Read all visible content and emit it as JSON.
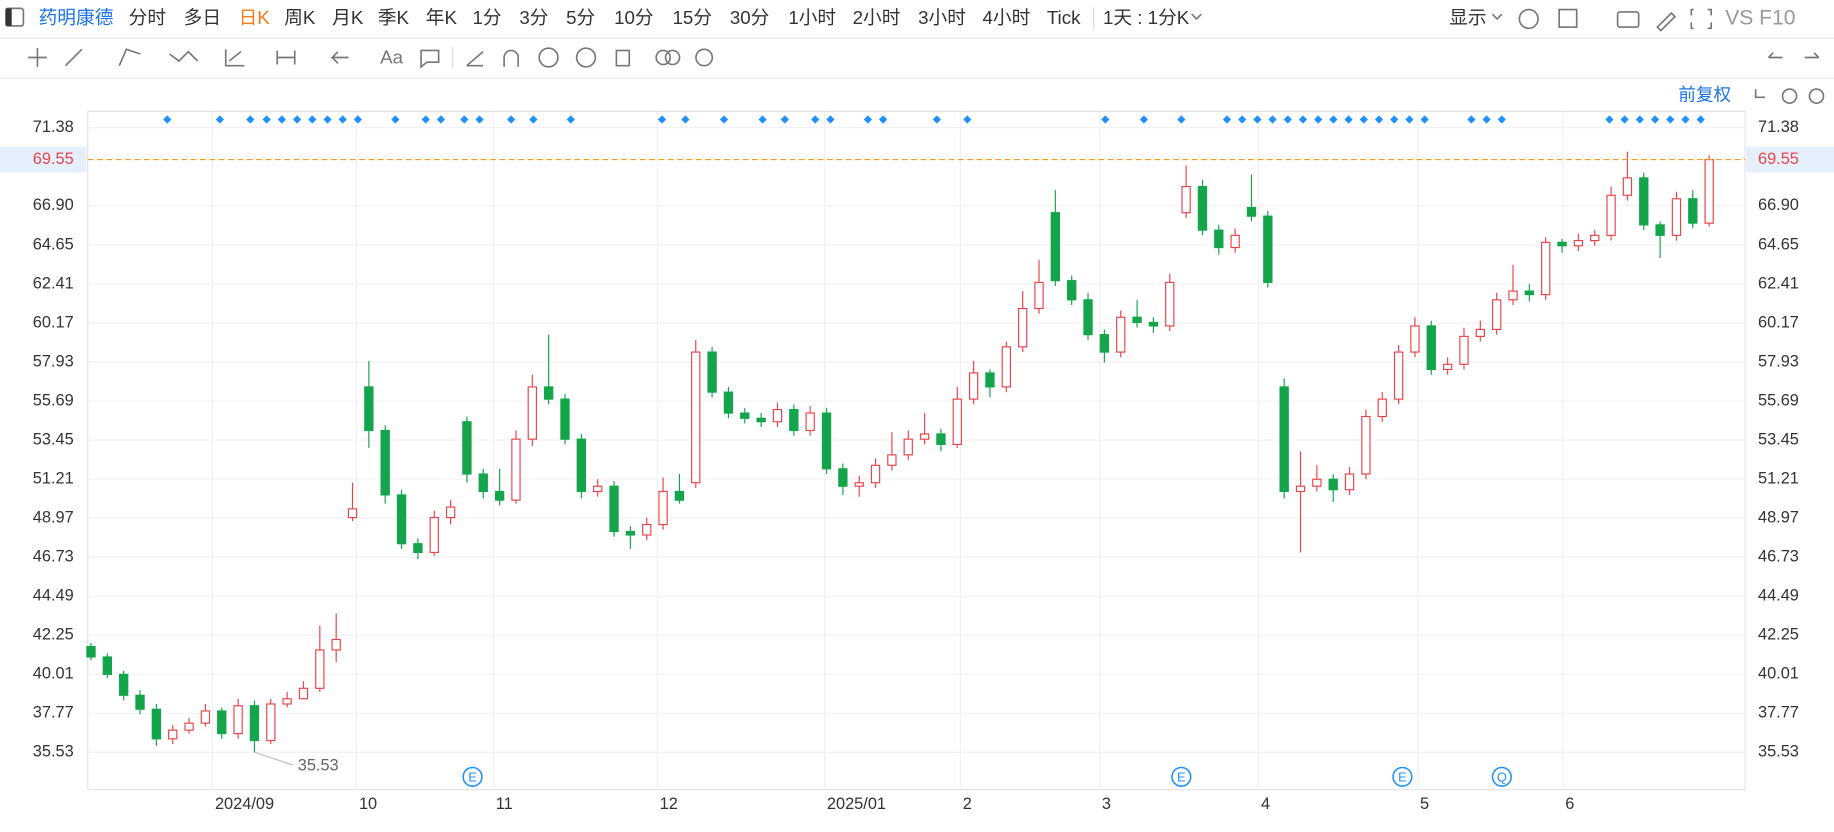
{
  "header": {
    "stock": "药明康德",
    "periods": [
      "分时",
      "多日",
      "日K",
      "周K",
      "月K",
      "季K",
      "年K",
      "1分",
      "3分",
      "5分",
      "10分",
      "15分",
      "30分",
      "1小时",
      "2小时",
      "3小时",
      "4小时",
      "Tick"
    ],
    "interval": "1天 : 1分K",
    "display": "显示",
    "vs": "VS",
    "f10": "F10"
  },
  "toolbar2": {
    "text_tool": "Aa"
  },
  "adjust": "前复权",
  "event_icons": [
    "E",
    "E",
    "E",
    "Q"
  ],
  "chart_data": {
    "type": "candlestick",
    "series": {
      "open": [
        41.6,
        41.0,
        40.0,
        38.8,
        38.0,
        36.3,
        36.8,
        37.2,
        37.9,
        36.6,
        38.2,
        36.2,
        38.3,
        38.6,
        39.2,
        41.4,
        49.0,
        56.5,
        54.0,
        50.3,
        47.5,
        47.0,
        49.0,
        54.5,
        51.5,
        50.5,
        50.0,
        53.5,
        56.5,
        55.8,
        53.5,
        50.5,
        50.8,
        48.2,
        48.0,
        48.6,
        50.5,
        51.0,
        58.5,
        56.2,
        55.0,
        54.7,
        54.5,
        55.2,
        54.0,
        55.0,
        51.8,
        50.8,
        51.0,
        52.0,
        52.6,
        53.5,
        53.8,
        53.2,
        55.8,
        57.3,
        56.5,
        58.8,
        61.0,
        66.5,
        62.6,
        61.5,
        59.5,
        58.5,
        60.5,
        60.2,
        60.0,
        66.5,
        68.0,
        65.5,
        64.5,
        66.8,
        66.3,
        56.5,
        50.5,
        50.8,
        51.2,
        50.6,
        51.5,
        54.8,
        55.8,
        58.5,
        60.0,
        57.5,
        57.8,
        59.4,
        59.8,
        61.5,
        62.0,
        61.8,
        64.8,
        64.6,
        64.9,
        65.2,
        67.5,
        68.5,
        65.8,
        65.2,
        67.3,
        65.9
      ],
      "high": [
        41.8,
        41.2,
        40.2,
        39.1,
        38.3,
        37.1,
        37.5,
        38.3,
        38.1,
        38.6,
        38.5,
        38.6,
        39.0,
        39.6,
        42.8,
        43.5,
        51.0,
        58.0,
        54.3,
        50.6,
        47.8,
        49.4,
        50.0,
        54.8,
        51.8,
        51.8,
        54.0,
        57.2,
        59.5,
        56.1,
        53.8,
        51.2,
        51.1,
        48.5,
        49.0,
        51.3,
        51.5,
        59.2,
        58.8,
        56.5,
        55.3,
        55.0,
        55.6,
        55.5,
        55.4,
        55.3,
        52.1,
        51.4,
        52.4,
        53.9,
        54.0,
        55.0,
        54.1,
        56.5,
        58.0,
        57.5,
        59.1,
        62.0,
        63.8,
        67.8,
        62.9,
        61.9,
        59.8,
        60.9,
        61.5,
        60.5,
        63.0,
        69.2,
        68.4,
        65.8,
        65.6,
        68.7,
        66.6,
        57.0,
        52.8,
        52.0,
        51.5,
        51.9,
        55.2,
        56.2,
        58.9,
        60.5,
        60.3,
        58.2,
        59.9,
        60.3,
        61.9,
        63.5,
        62.4,
        65.1,
        65.0,
        65.3,
        65.5,
        68.0,
        70.0,
        68.8,
        66.0,
        67.7,
        67.8,
        69.8
      ],
      "low": [
        40.8,
        39.8,
        38.5,
        37.7,
        35.9,
        36.0,
        36.6,
        37.0,
        36.3,
        36.3,
        35.53,
        36.0,
        38.1,
        38.7,
        39.0,
        40.7,
        48.8,
        53.0,
        49.8,
        47.2,
        46.6,
        46.8,
        48.6,
        51.0,
        50.1,
        49.7,
        49.8,
        53.1,
        55.5,
        53.2,
        50.1,
        50.2,
        47.9,
        47.2,
        47.7,
        48.3,
        49.8,
        50.7,
        55.9,
        54.7,
        54.4,
        54.2,
        54.2,
        53.7,
        53.7,
        51.5,
        50.3,
        50.2,
        50.7,
        51.7,
        52.3,
        53.2,
        52.8,
        53.0,
        55.5,
        55.9,
        56.2,
        58.5,
        60.7,
        62.3,
        61.2,
        59.2,
        57.9,
        58.2,
        59.9,
        59.6,
        59.7,
        66.2,
        65.2,
        64.1,
        64.2,
        66.0,
        62.2,
        50.1,
        47.0,
        50.5,
        49.9,
        50.3,
        51.2,
        54.5,
        55.5,
        58.2,
        57.2,
        57.2,
        57.5,
        59.1,
        59.5,
        61.2,
        61.4,
        61.5,
        64.2,
        64.3,
        64.6,
        64.9,
        67.2,
        65.5,
        63.9,
        64.9,
        65.6,
        65.7
      ],
      "close": [
        41.0,
        40.0,
        38.8,
        38.0,
        36.3,
        36.8,
        37.2,
        37.9,
        36.6,
        38.2,
        36.2,
        38.3,
        38.6,
        39.2,
        41.4,
        42.0,
        49.5,
        54.0,
        50.3,
        47.5,
        47.0,
        49.0,
        49.6,
        51.5,
        50.5,
        50.0,
        53.5,
        56.5,
        55.8,
        53.5,
        50.5,
        50.8,
        48.2,
        48.0,
        48.6,
        50.5,
        50.0,
        58.5,
        56.2,
        55.0,
        54.7,
        54.5,
        55.2,
        54.0,
        55.0,
        51.8,
        50.8,
        51.0,
        52.0,
        52.6,
        53.5,
        53.8,
        53.2,
        55.8,
        57.3,
        56.5,
        58.8,
        61.0,
        62.5,
        62.6,
        61.5,
        59.5,
        58.5,
        60.5,
        60.2,
        60.0,
        62.5,
        68.0,
        65.5,
        64.5,
        65.2,
        66.3,
        62.5,
        50.5,
        50.8,
        51.2,
        50.6,
        51.5,
        54.8,
        55.8,
        58.5,
        60.0,
        57.5,
        57.8,
        59.4,
        59.8,
        61.5,
        62.0,
        61.8,
        64.8,
        64.6,
        64.9,
        65.2,
        67.5,
        68.5,
        65.8,
        65.2,
        67.3,
        65.9,
        69.55
      ]
    },
    "colors": {
      "up": "#e8454a",
      "down": "#14a44b"
    },
    "last_price_color": "#f59a23",
    "xlim": [
      -0.2,
      101.2
    ],
    "xticks": [
      {
        "value": 7.44,
        "label": "2024/09"
      },
      {
        "value": 16.25,
        "label": "10"
      },
      {
        "value": 24.62,
        "label": "11"
      },
      {
        "value": 34.65,
        "label": "12"
      },
      {
        "value": 44.88,
        "label": "2025/01"
      },
      {
        "value": 53.19,
        "label": "2"
      },
      {
        "value": 61.7,
        "label": "3"
      },
      {
        "value": 71.44,
        "label": "4"
      },
      {
        "value": 81.17,
        "label": "5"
      },
      {
        "value": 90.05,
        "label": "6"
      }
    ],
    "ylim": [
      33.38,
      72.32
    ],
    "yticks": [
      71.38,
      {
        "value": 66.9,
        "label": "66.90"
      },
      64.65,
      62.41,
      60.17,
      57.93,
      55.69,
      53.45,
      51.21,
      48.97,
      46.73,
      44.49,
      42.25,
      40.01,
      37.77,
      35.53
    ],
    "grid": true
  }
}
